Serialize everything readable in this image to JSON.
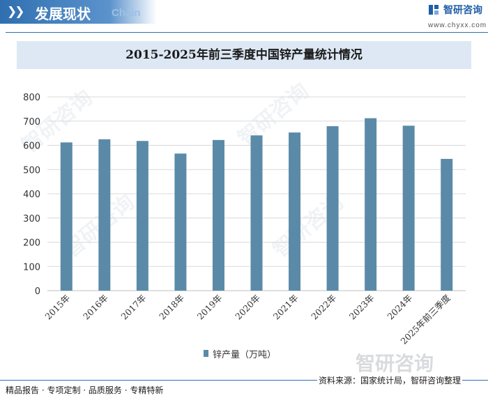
{
  "header": {
    "section_title": "发展现状",
    "section_en": "Chain",
    "logo_name": "智研咨询",
    "logo_url": "www.chyxx.com"
  },
  "watermark": {
    "text": "智研咨询"
  },
  "chart_data": {
    "type": "bar",
    "title": "2015-2025年前三季度中国锌产量统计情况",
    "xlabel": "",
    "ylabel": "",
    "categories": [
      "2015年",
      "2016年",
      "2017年",
      "2018年",
      "2019年",
      "2020年",
      "2021年",
      "2022年",
      "2023年",
      "2024年",
      "2025年前三季度"
    ],
    "series": [
      {
        "name": "锌产量（万吨）",
        "values": [
          612,
          625,
          618,
          566,
          622,
          641,
          653,
          679,
          712,
          681,
          544
        ],
        "color": "#5a8aa8"
      }
    ],
    "ylim": [
      0,
      800
    ],
    "yticks": [
      0,
      100,
      200,
      300,
      400,
      500,
      600,
      700,
      800
    ],
    "grid": true,
    "legend_position": "bottom"
  },
  "footer": {
    "left": "精品报告 · 专项定制 · 品质服务 · 专精特新",
    "right": "资料来源：国家统计局，智研咨询整理"
  }
}
